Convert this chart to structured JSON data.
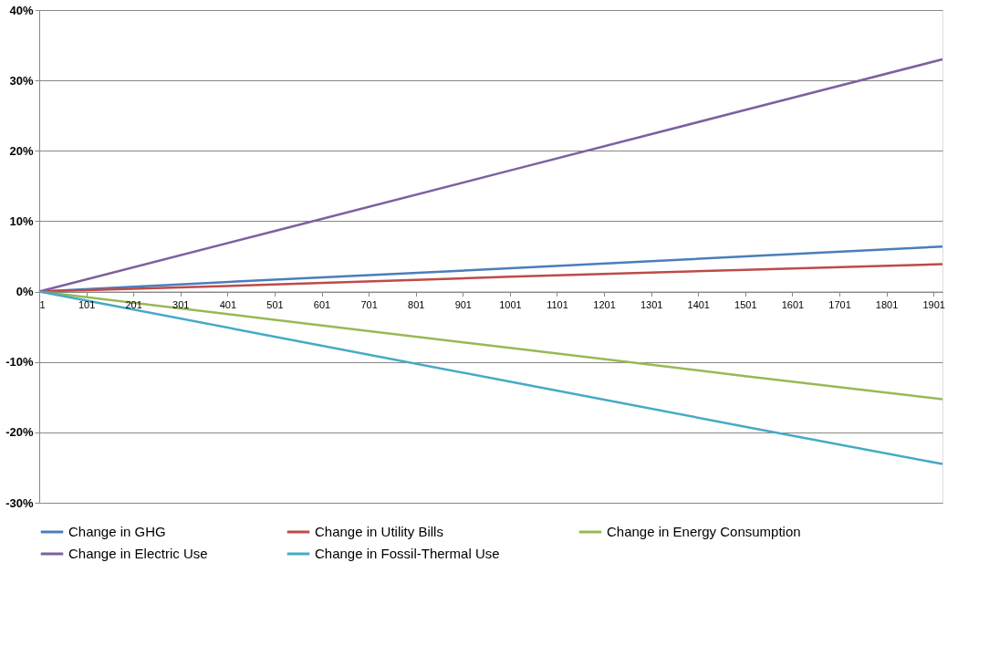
{
  "chart_data": {
    "type": "line",
    "x": [
      1,
      501,
      1001,
      1501,
      1920
    ],
    "xlim": [
      1,
      1920
    ],
    "xticks": [
      1,
      101,
      201,
      301,
      401,
      501,
      601,
      701,
      801,
      901,
      1001,
      1101,
      1201,
      1301,
      1401,
      1501,
      1601,
      1701,
      1801,
      1901
    ],
    "ylim": [
      -30,
      40
    ],
    "yticks": [
      {
        "value": -30,
        "label": "-30%"
      },
      {
        "value": -20,
        "label": "-20%"
      },
      {
        "value": -10,
        "label": "-10%"
      },
      {
        "value": 0,
        "label": "0%"
      },
      {
        "value": 10,
        "label": "10%"
      },
      {
        "value": 20,
        "label": "20%"
      },
      {
        "value": 30,
        "label": "30%"
      },
      {
        "value": 40,
        "label": "40%"
      }
    ],
    "grid": "y",
    "legend": "bottom",
    "marker": "none",
    "line_style": "solid",
    "series": [
      {
        "name": "Change in GHG",
        "color": "#4a7ebb",
        "values": [
          0,
          1.7,
          3.3,
          5.0,
          6.4
        ]
      },
      {
        "name": "Change in Utility Bills",
        "color": "#be4b48",
        "values": [
          0,
          1.0,
          2.1,
          3.1,
          3.9
        ]
      },
      {
        "name": "Change in Energy Consumption",
        "color": "#98b954",
        "values": [
          0,
          -4.0,
          -8.0,
          -12.0,
          -15.3
        ]
      },
      {
        "name": "Change in Electric Use",
        "color": "#7d60a0",
        "values": [
          0,
          8.6,
          17.2,
          25.8,
          33.0
        ]
      },
      {
        "name": "Change in Fossil-Thermal Use",
        "color": "#46aac5",
        "values": [
          0,
          -6.4,
          -12.8,
          -19.2,
          -24.5
        ]
      }
    ]
  }
}
